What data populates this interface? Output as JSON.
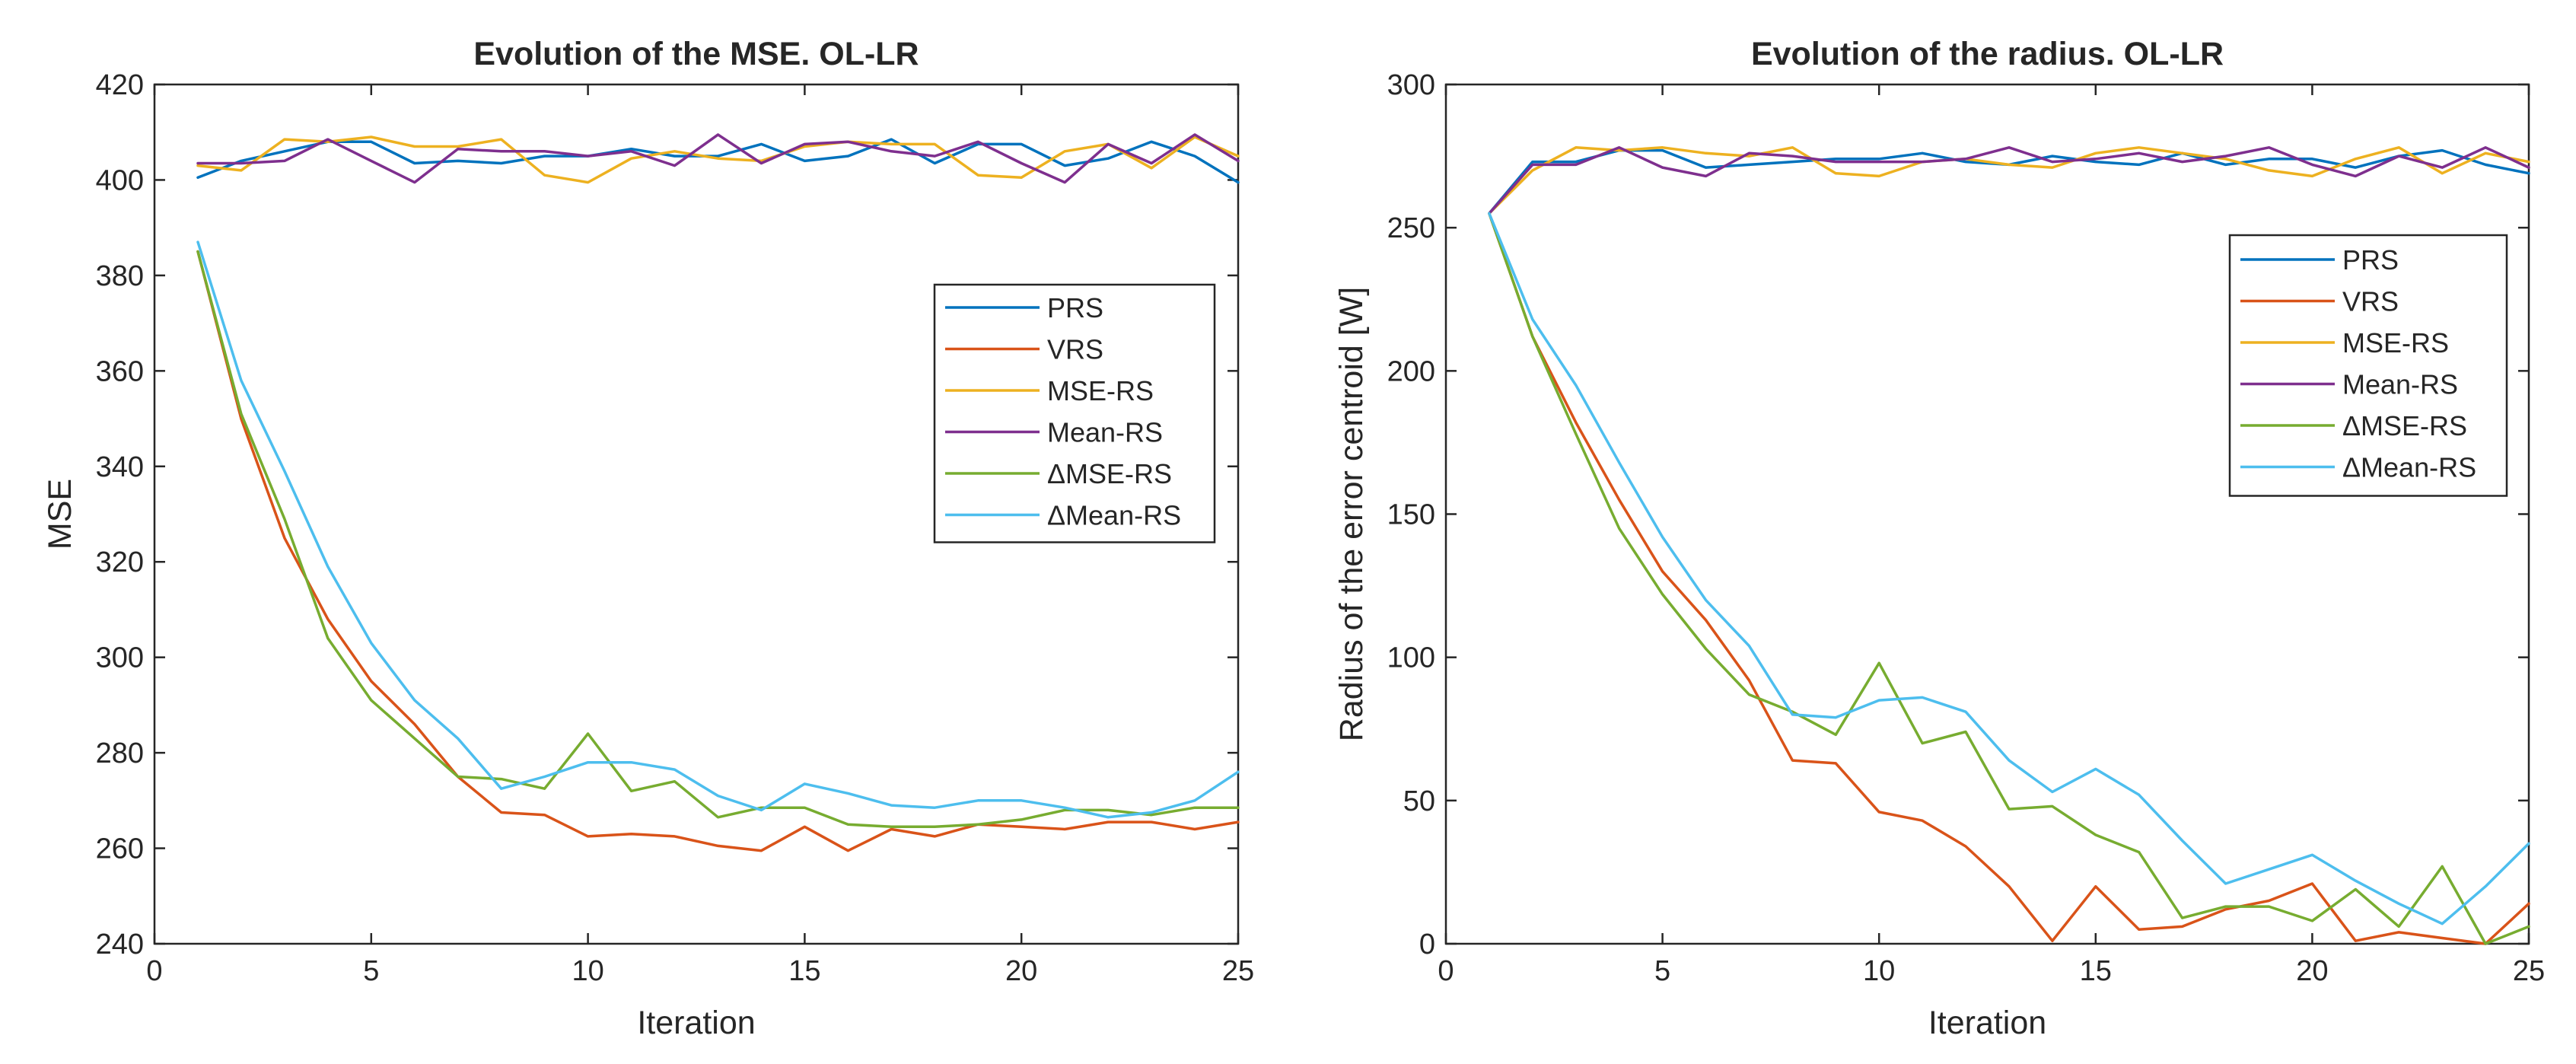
{
  "chart_data": [
    {
      "type": "line",
      "title": "Evolution of the MSE. OL-LR",
      "xlabel": "Iteration",
      "ylabel": "MSE",
      "xlim": [
        0,
        25
      ],
      "ylim": [
        240,
        420
      ],
      "xticks": [
        0,
        5,
        10,
        15,
        20,
        25
      ],
      "yticks": [
        240,
        260,
        280,
        300,
        320,
        340,
        360,
        380,
        400,
        420
      ],
      "grid": false,
      "legend_position": "center-right",
      "series": [
        {
          "name": "PRS",
          "color": "#0072BD",
          "x": [
            1,
            2,
            3,
            4,
            5,
            6,
            7,
            8,
            9,
            10,
            11,
            12,
            13,
            14,
            15,
            16,
            17,
            18,
            19,
            20,
            21,
            22,
            23,
            24,
            25
          ],
          "values": [
            400.5,
            404,
            406,
            408,
            408,
            403.5,
            404,
            403.5,
            405,
            405,
            406.5,
            405,
            405,
            407.5,
            404,
            405,
            408.5,
            403.5,
            407.5,
            407.5,
            403,
            404.5,
            408,
            405,
            399.5
          ]
        },
        {
          "name": "VRS",
          "color": "#D95319",
          "x": [
            1,
            2,
            3,
            4,
            5,
            6,
            7,
            8,
            9,
            10,
            11,
            12,
            13,
            14,
            15,
            16,
            17,
            18,
            19,
            20,
            21,
            22,
            23,
            24,
            25
          ],
          "values": [
            385,
            350,
            325,
            308,
            295,
            286,
            275,
            267.5,
            267,
            262.5,
            263,
            262.5,
            260.5,
            259.5,
            264.5,
            259.5,
            264,
            262.5,
            265,
            264.5,
            264,
            265.5,
            265.5,
            264,
            265.5
          ]
        },
        {
          "name": "MSE-RS",
          "color": "#EDB120",
          "x": [
            1,
            2,
            3,
            4,
            5,
            6,
            7,
            8,
            9,
            10,
            11,
            12,
            13,
            14,
            15,
            16,
            17,
            18,
            19,
            20,
            21,
            22,
            23,
            24,
            25
          ],
          "values": [
            403,
            402,
            408.5,
            408,
            409,
            407,
            407,
            408.5,
            401,
            399.5,
            404.5,
            406,
            404.5,
            404,
            407,
            408,
            407.5,
            407.5,
            401,
            400.5,
            406,
            407.5,
            402.5,
            409,
            405
          ]
        },
        {
          "name": "Mean-RS",
          "color": "#7E2F8E",
          "x": [
            1,
            2,
            3,
            4,
            5,
            6,
            7,
            8,
            9,
            10,
            11,
            12,
            13,
            14,
            15,
            16,
            17,
            18,
            19,
            20,
            21,
            22,
            23,
            24,
            25
          ],
          "values": [
            403.5,
            403.5,
            404,
            408.5,
            404,
            399.5,
            406.5,
            406,
            406,
            405,
            406,
            403,
            409.5,
            403.5,
            407.5,
            408,
            406,
            405,
            408,
            403.5,
            399.5,
            407.5,
            403.5,
            409.5,
            404
          ]
        },
        {
          "name": "ΔMSE-RS",
          "color": "#77AC30",
          "x": [
            1,
            2,
            3,
            4,
            5,
            6,
            7,
            8,
            9,
            10,
            11,
            12,
            13,
            14,
            15,
            16,
            17,
            18,
            19,
            20,
            21,
            22,
            23,
            24,
            25
          ],
          "values": [
            385,
            351,
            329,
            304,
            291,
            283,
            275,
            274.5,
            272.5,
            284,
            272,
            274,
            266.5,
            268.5,
            268.5,
            265,
            264.5,
            264.5,
            265,
            266,
            268,
            268,
            267,
            268.5,
            268.5
          ]
        },
        {
          "name": "ΔMean-RS",
          "color": "#4DBEEE",
          "x": [
            1,
            2,
            3,
            4,
            5,
            6,
            7,
            8,
            9,
            10,
            11,
            12,
            13,
            14,
            15,
            16,
            17,
            18,
            19,
            20,
            21,
            22,
            23,
            24,
            25
          ],
          "values": [
            387,
            358,
            339,
            319,
            303,
            291,
            283,
            272.5,
            275,
            278,
            278,
            276.5,
            271,
            268,
            273.5,
            271.5,
            269,
            268.5,
            270,
            270,
            268.5,
            266.5,
            267.5,
            270,
            276
          ]
        }
      ]
    },
    {
      "type": "line",
      "title": "Evolution of the radius. OL-LR",
      "xlabel": "Iteration",
      "ylabel": "Radius of the error centroid [W]",
      "xlim": [
        0,
        25
      ],
      "ylim": [
        0,
        300
      ],
      "xticks": [
        0,
        5,
        10,
        15,
        20,
        25
      ],
      "yticks": [
        0,
        50,
        100,
        150,
        200,
        250,
        300
      ],
      "grid": false,
      "legend_position": "top-right",
      "series": [
        {
          "name": "PRS",
          "color": "#0072BD",
          "x": [
            1,
            2,
            3,
            4,
            5,
            6,
            7,
            8,
            9,
            10,
            11,
            12,
            13,
            14,
            15,
            16,
            17,
            18,
            19,
            20,
            21,
            22,
            23,
            24,
            25
          ],
          "values": [
            255,
            273,
            273,
            277,
            277,
            271,
            272,
            273,
            274,
            274,
            276,
            273,
            272,
            275,
            273,
            272,
            276,
            272,
            274,
            274,
            271,
            275,
            277,
            272,
            269
          ]
        },
        {
          "name": "VRS",
          "color": "#D95319",
          "x": [
            1,
            2,
            3,
            4,
            5,
            6,
            7,
            8,
            9,
            10,
            11,
            12,
            13,
            14,
            15,
            16,
            17,
            18,
            19,
            20,
            21,
            22,
            23,
            24,
            25
          ],
          "values": [
            255,
            212,
            182,
            155,
            130,
            113,
            92,
            64,
            63,
            46,
            43,
            34,
            20,
            1,
            20,
            5,
            6,
            12,
            15,
            21,
            1,
            4,
            2,
            0,
            14
          ]
        },
        {
          "name": "MSE-RS",
          "color": "#EDB120",
          "x": [
            1,
            2,
            3,
            4,
            5,
            6,
            7,
            8,
            9,
            10,
            11,
            12,
            13,
            14,
            15,
            16,
            17,
            18,
            19,
            20,
            21,
            22,
            23,
            24,
            25
          ],
          "values": [
            255,
            270,
            278,
            277,
            278,
            276,
            275,
            278,
            269,
            268,
            273,
            274,
            272,
            271,
            276,
            278,
            276,
            274,
            270,
            268,
            274,
            278,
            269,
            276,
            273
          ]
        },
        {
          "name": "Mean-RS",
          "color": "#7E2F8E",
          "x": [
            1,
            2,
            3,
            4,
            5,
            6,
            7,
            8,
            9,
            10,
            11,
            12,
            13,
            14,
            15,
            16,
            17,
            18,
            19,
            20,
            21,
            22,
            23,
            24,
            25
          ],
          "values": [
            255,
            272,
            272,
            278,
            271,
            268,
            276,
            275,
            273,
            273,
            273,
            274,
            278,
            273,
            274,
            276,
            273,
            275,
            278,
            272,
            268,
            275,
            271,
            278,
            271
          ]
        },
        {
          "name": "ΔMSE-RS",
          "color": "#77AC30",
          "x": [
            1,
            2,
            3,
            4,
            5,
            6,
            7,
            8,
            9,
            10,
            11,
            12,
            13,
            14,
            15,
            16,
            17,
            18,
            19,
            20,
            21,
            22,
            23,
            24,
            25
          ],
          "values": [
            255,
            212,
            178,
            145,
            122,
            103,
            87,
            81,
            73,
            98,
            70,
            74,
            47,
            48,
            38,
            32,
            9,
            13,
            13,
            8,
            19,
            6,
            27,
            0,
            6
          ]
        },
        {
          "name": "ΔMean-RS",
          "color": "#4DBEEE",
          "x": [
            1,
            2,
            3,
            4,
            5,
            6,
            7,
            8,
            9,
            10,
            11,
            12,
            13,
            14,
            15,
            16,
            17,
            18,
            19,
            20,
            21,
            22,
            23,
            24,
            25
          ],
          "values": [
            255,
            218,
            195,
            168,
            142,
            120,
            104,
            80,
            79,
            85,
            86,
            81,
            64,
            53,
            61,
            52,
            36,
            21,
            26,
            31,
            22,
            14,
            7,
            20,
            35
          ]
        }
      ]
    }
  ]
}
